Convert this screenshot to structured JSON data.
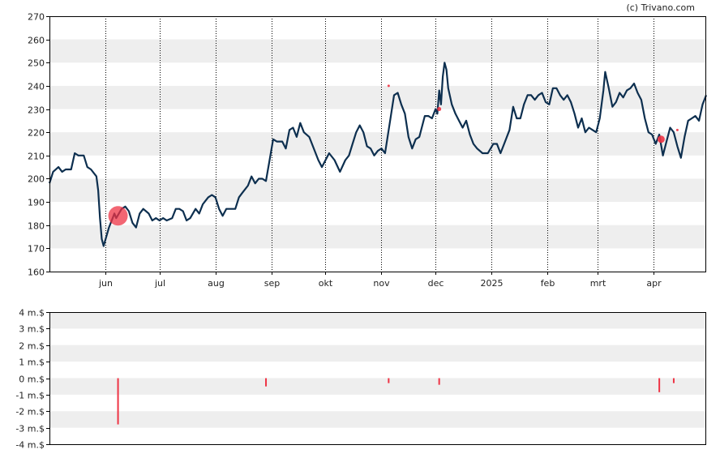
{
  "credit": "(c) Trivano.com",
  "colors": {
    "price_line": "#0d2f4f",
    "marker": "#ee3344",
    "band": "#eeeeee",
    "axis": "#000000"
  },
  "chart_data": [
    {
      "type": "line",
      "title": "",
      "ylim": [
        160,
        270
      ],
      "yticks": [
        160,
        170,
        180,
        190,
        200,
        210,
        220,
        230,
        240,
        250,
        260,
        270
      ],
      "yticklabels": [
        "160",
        "170",
        "180",
        "190",
        "200",
        "210",
        "220",
        "230",
        "240",
        "250",
        "260",
        "270"
      ],
      "xlim": [
        "2024-05-01",
        "2025-04-30"
      ],
      "xticks": [
        {
          "date": "2024-06-01",
          "label": "jun"
        },
        {
          "date": "2024-07-01",
          "label": "jul"
        },
        {
          "date": "2024-08-01",
          "label": "aug"
        },
        {
          "date": "2024-09-01",
          "label": "sep"
        },
        {
          "date": "2024-10-01",
          "label": "okt"
        },
        {
          "date": "2024-11-01",
          "label": "nov"
        },
        {
          "date": "2024-12-01",
          "label": "dec"
        },
        {
          "date": "2025-01-01",
          "label": "2025"
        },
        {
          "date": "2025-02-01",
          "label": "feb"
        },
        {
          "date": "2025-03-01",
          "label": "mrt"
        },
        {
          "date": "2025-04-01",
          "label": "apr"
        }
      ],
      "grid": "vertical dotted lines at month ticks, alternating horizontal bands",
      "series": [
        {
          "values": [
            [
              "2024-05-01",
              198
            ],
            [
              "2024-05-03",
              203
            ],
            [
              "2024-05-06",
              205
            ],
            [
              "2024-05-08",
              203
            ],
            [
              "2024-05-10",
              204
            ],
            [
              "2024-05-13",
              204
            ],
            [
              "2024-05-15",
              211
            ],
            [
              "2024-05-17",
              210
            ],
            [
              "2024-05-20",
              210
            ],
            [
              "2024-05-22",
              205
            ],
            [
              "2024-05-24",
              204
            ],
            [
              "2024-05-27",
              201
            ],
            [
              "2024-05-28",
              195
            ],
            [
              "2024-05-29",
              183
            ],
            [
              "2024-05-30",
              174
            ],
            [
              "2024-05-31",
              171
            ],
            [
              "2024-06-03",
              179
            ],
            [
              "2024-06-05",
              183
            ],
            [
              "2024-06-06",
              185
            ],
            [
              "2024-06-07",
              183
            ],
            [
              "2024-06-10",
              187
            ],
            [
              "2024-06-12",
              188
            ],
            [
              "2024-06-14",
              186
            ],
            [
              "2024-06-16",
              181
            ],
            [
              "2024-06-18",
              179
            ],
            [
              "2024-06-20",
              185
            ],
            [
              "2024-06-22",
              187
            ],
            [
              "2024-06-25",
              185
            ],
            [
              "2024-06-27",
              182
            ],
            [
              "2024-06-29",
              183
            ],
            [
              "2024-07-01",
              182
            ],
            [
              "2024-07-03",
              183
            ],
            [
              "2024-07-05",
              182
            ],
            [
              "2024-07-08",
              183
            ],
            [
              "2024-07-10",
              187
            ],
            [
              "2024-07-12",
              187
            ],
            [
              "2024-07-14",
              186
            ],
            [
              "2024-07-16",
              182
            ],
            [
              "2024-07-18",
              183
            ],
            [
              "2024-07-21",
              187
            ],
            [
              "2024-07-23",
              185
            ],
            [
              "2024-07-25",
              189
            ],
            [
              "2024-07-28",
              192
            ],
            [
              "2024-07-30",
              193
            ],
            [
              "2024-08-01",
              192
            ],
            [
              "2024-08-03",
              187
            ],
            [
              "2024-08-05",
              184
            ],
            [
              "2024-08-07",
              187
            ],
            [
              "2024-08-09",
              187
            ],
            [
              "2024-08-12",
              187
            ],
            [
              "2024-08-14",
              192
            ],
            [
              "2024-08-16",
              194
            ],
            [
              "2024-08-19",
              197
            ],
            [
              "2024-08-21",
              201
            ],
            [
              "2024-08-23",
              198
            ],
            [
              "2024-08-25",
              200
            ],
            [
              "2024-08-27",
              200
            ],
            [
              "2024-08-29",
              199
            ],
            [
              "2024-08-31",
              208
            ],
            [
              "2024-09-02",
              217
            ],
            [
              "2024-09-04",
              216
            ],
            [
              "2024-09-07",
              216
            ],
            [
              "2024-09-09",
              213
            ],
            [
              "2024-09-11",
              221
            ],
            [
              "2024-09-13",
              222
            ],
            [
              "2024-09-15",
              218
            ],
            [
              "2024-09-17",
              224
            ],
            [
              "2024-09-19",
              220
            ],
            [
              "2024-09-22",
              218
            ],
            [
              "2024-09-24",
              214
            ],
            [
              "2024-09-27",
              208
            ],
            [
              "2024-09-29",
              205
            ],
            [
              "2024-10-01",
              208
            ],
            [
              "2024-10-03",
              211
            ],
            [
              "2024-10-06",
              208
            ],
            [
              "2024-10-09",
              203
            ],
            [
              "2024-10-12",
              208
            ],
            [
              "2024-10-14",
              210
            ],
            [
              "2024-10-16",
              215
            ],
            [
              "2024-10-18",
              220
            ],
            [
              "2024-10-20",
              223
            ],
            [
              "2024-10-22",
              220
            ],
            [
              "2024-10-24",
              214
            ],
            [
              "2024-10-26",
              213
            ],
            [
              "2024-10-28",
              210
            ],
            [
              "2024-10-30",
              212
            ],
            [
              "2024-11-01",
              213
            ],
            [
              "2024-11-03",
              211
            ],
            [
              "2024-11-06",
              226
            ],
            [
              "2024-11-08",
              236
            ],
            [
              "2024-11-10",
              237
            ],
            [
              "2024-11-12",
              232
            ],
            [
              "2024-11-14",
              228
            ],
            [
              "2024-11-16",
              218
            ],
            [
              "2024-11-18",
              213
            ],
            [
              "2024-11-20",
              217
            ],
            [
              "2024-11-22",
              218
            ],
            [
              "2024-11-25",
              227
            ],
            [
              "2024-11-27",
              227
            ],
            [
              "2024-11-29",
              226
            ],
            [
              "2024-12-01",
              230
            ],
            [
              "2024-12-02",
              228
            ],
            [
              "2024-12-03",
              238
            ],
            [
              "2024-12-04",
              232
            ],
            [
              "2024-12-05",
              244
            ],
            [
              "2024-12-06",
              250
            ],
            [
              "2024-12-07",
              247
            ],
            [
              "2024-12-08",
              239
            ],
            [
              "2024-12-10",
              232
            ],
            [
              "2024-12-12",
              228
            ],
            [
              "2024-12-14",
              225
            ],
            [
              "2024-12-16",
              222
            ],
            [
              "2024-12-18",
              225
            ],
            [
              "2024-12-20",
              219
            ],
            [
              "2024-12-22",
              215
            ],
            [
              "2024-12-24",
              213
            ],
            [
              "2024-12-27",
              211
            ],
            [
              "2024-12-30",
              211
            ],
            [
              "2025-01-02",
              215
            ],
            [
              "2025-01-04",
              215
            ],
            [
              "2025-01-06",
              211
            ],
            [
              "2025-01-08",
              215
            ],
            [
              "2025-01-11",
              221
            ],
            [
              "2025-01-13",
              231
            ],
            [
              "2025-01-15",
              226
            ],
            [
              "2025-01-17",
              226
            ],
            [
              "2025-01-19",
              232
            ],
            [
              "2025-01-21",
              236
            ],
            [
              "2025-01-23",
              236
            ],
            [
              "2025-01-25",
              234
            ],
            [
              "2025-01-27",
              236
            ],
            [
              "2025-01-29",
              237
            ],
            [
              "2025-01-31",
              233
            ],
            [
              "2025-02-02",
              232
            ],
            [
              "2025-02-04",
              239
            ],
            [
              "2025-02-06",
              239
            ],
            [
              "2025-02-08",
              236
            ],
            [
              "2025-02-10",
              234
            ],
            [
              "2025-02-12",
              236
            ],
            [
              "2025-02-14",
              233
            ],
            [
              "2025-02-16",
              228
            ],
            [
              "2025-02-18",
              222
            ],
            [
              "2025-02-20",
              226
            ],
            [
              "2025-02-22",
              220
            ],
            [
              "2025-02-24",
              222
            ],
            [
              "2025-02-26",
              221
            ],
            [
              "2025-02-28",
              220
            ],
            [
              "2025-03-02",
              226
            ],
            [
              "2025-03-04",
              238
            ],
            [
              "2025-03-05",
              246
            ],
            [
              "2025-03-07",
              239
            ],
            [
              "2025-03-09",
              231
            ],
            [
              "2025-03-11",
              233
            ],
            [
              "2025-03-13",
              237
            ],
            [
              "2025-03-15",
              235
            ],
            [
              "2025-03-17",
              238
            ],
            [
              "2025-03-19",
              239
            ],
            [
              "2025-03-21",
              241
            ],
            [
              "2025-03-23",
              237
            ],
            [
              "2025-03-25",
              234
            ],
            [
              "2025-03-27",
              226
            ],
            [
              "2025-03-29",
              220
            ],
            [
              "2025-03-31",
              219
            ],
            [
              "2025-04-02",
              215
            ],
            [
              "2025-04-04",
              219
            ],
            [
              "2025-04-06",
              210
            ],
            [
              "2025-04-08",
              216
            ],
            [
              "2025-04-10",
              222
            ],
            [
              "2025-04-12",
              220
            ],
            [
              "2025-04-14",
              214
            ],
            [
              "2025-04-16",
              209
            ],
            [
              "2025-04-18",
              218
            ],
            [
              "2025-04-20",
              225
            ],
            [
              "2025-04-22",
              226
            ],
            [
              "2025-04-24",
              227
            ],
            [
              "2025-04-26",
              225
            ],
            [
              "2025-04-28",
              232
            ],
            [
              "2025-04-30",
              236
            ]
          ]
        }
      ],
      "markers": [
        {
          "date": "2024-06-08",
          "y": 184,
          "size": "large"
        },
        {
          "date": "2024-11-05",
          "y": 240,
          "size": "tiny"
        },
        {
          "date": "2024-12-03",
          "y": 230,
          "size": "small"
        },
        {
          "date": "2025-04-05",
          "y": 217,
          "size": "medium"
        },
        {
          "date": "2025-04-14",
          "y": 221,
          "size": "tiny"
        }
      ]
    },
    {
      "type": "bar",
      "title": "",
      "ylim": [
        -4,
        4
      ],
      "yticks": [
        -4,
        -3,
        -2,
        -1,
        0,
        1,
        2,
        3,
        4
      ],
      "yticklabels": [
        "-4 m.$",
        "-3 m.$",
        "-2 m.$",
        "-1 m.$",
        "0 m.$",
        "1 m.$",
        "2 m.$",
        "3 m.$",
        "4 m.$"
      ],
      "xlim": [
        "2024-05-01",
        "2025-04-30"
      ],
      "grid": "alternating horizontal bands",
      "bars": [
        {
          "date": "2024-06-08",
          "value": -2.8
        },
        {
          "date": "2024-08-29",
          "value": -0.5
        },
        {
          "date": "2024-11-05",
          "value": -0.3
        },
        {
          "date": "2024-12-03",
          "value": -0.4
        },
        {
          "date": "2025-04-04",
          "value": -0.85
        },
        {
          "date": "2025-04-12",
          "value": -0.3
        }
      ]
    }
  ]
}
